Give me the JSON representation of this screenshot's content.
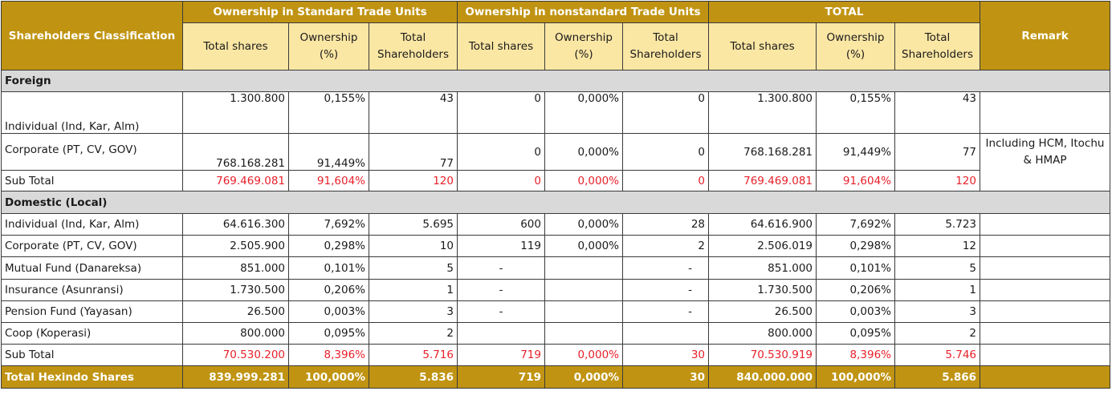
{
  "header": {
    "classification": "Shareholders Classification",
    "group_standard": "Ownership in Standard Trade Units",
    "group_nonstandard": "Ownership in nonstandard Trade Units",
    "group_total": "TOTAL",
    "remark": "Remark",
    "col_total_shares": "Total shares",
    "col_ownership": "Ownership (%)",
    "col_total_shareholders": "Total Shareholders"
  },
  "sections": {
    "foreign": "Foreign",
    "domestic": "Domestic (Local)"
  },
  "foreign_rows": [
    {
      "label": "Individual (Ind, Kar, Alm)",
      "c": [
        "1.300.800",
        "0,155%",
        "43",
        "0",
        "0,000%",
        "0",
        "1.300.800",
        "0,155%",
        "43"
      ],
      "remark": ""
    },
    {
      "label": "Corporate (PT, CV, GOV)",
      "c": [
        "768.168.281",
        "91,449%",
        "77",
        "0",
        "0,000%",
        "0",
        "768.168.281",
        "91,449%",
        "77"
      ],
      "remark": "Including HCM, Itochu & HMAP"
    }
  ],
  "foreign_subtotal": {
    "label": "Sub Total",
    "c": [
      "769.469.081",
      "91,604%",
      "120",
      "0",
      "0,000%",
      "0",
      "769.469.081",
      "91,604%",
      "120"
    ]
  },
  "domestic_rows": [
    {
      "label": "Individual (Ind, Kar, Alm)",
      "c": [
        "64.616.300",
        "7,692%",
        "5.695",
        "600",
        "0,000%",
        "28",
        "64.616.900",
        "7,692%",
        "5.723"
      ]
    },
    {
      "label": "Corporate (PT, CV, GOV)",
      "c": [
        "2.505.900",
        "0,298%",
        "10",
        "119",
        "0,000%",
        "2",
        "2.506.019",
        "0,298%",
        "12"
      ]
    },
    {
      "label": "Mutual Fund (Danareksa)",
      "c": [
        "851.000",
        "0,101%",
        "5",
        "-",
        "",
        "-",
        "851.000",
        "0,101%",
        "5"
      ]
    },
    {
      "label": "Insurance (Asunransi)",
      "c": [
        "1.730.500",
        "0,206%",
        "1",
        "-",
        "",
        "-",
        "1.730.500",
        "0,206%",
        "1"
      ]
    },
    {
      "label": "Pension Fund (Yayasan)",
      "c": [
        "26.500",
        "0,003%",
        "3",
        "-",
        "",
        "-",
        "26.500",
        "0,003%",
        "3"
      ]
    },
    {
      "label": "Coop (Koperasi)",
      "c": [
        "800.000",
        "0,095%",
        "2",
        "",
        "",
        "",
        "800.000",
        "0,095%",
        "2"
      ]
    }
  ],
  "domestic_subtotal": {
    "label": "Sub Total",
    "c": [
      "70.530.200",
      "8,396%",
      "5.716",
      "719",
      "0,000%",
      "30",
      "70.530.919",
      "8,396%",
      "5.746"
    ]
  },
  "grand_total": {
    "label": "Total Hexindo Shares",
    "c": [
      "839.999.281",
      "100,000%",
      "5.836",
      "719",
      "0,000%",
      "30",
      "840.000.000",
      "100,000%",
      "5.866"
    ]
  },
  "colors": {
    "header_gold": "#c09412",
    "header_light": "#fbe7a4",
    "section_gray": "#d9d9d9",
    "subtotal_red": "#e8202a"
  }
}
